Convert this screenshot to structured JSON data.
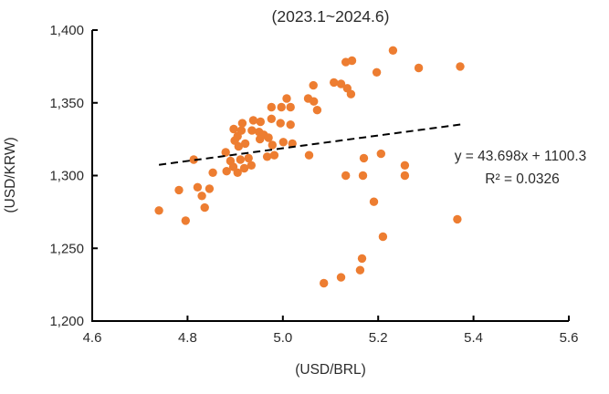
{
  "chart_data": {
    "type": "scatter",
    "title": "(2023.1~2024.6)",
    "xlabel": "(USD/BRL)",
    "ylabel": "(USD/KRW)",
    "xlim": [
      4.6,
      5.6
    ],
    "ylim": [
      1200,
      1400
    ],
    "grid": false,
    "legend_position": "none",
    "marker_color": "#ED7D31",
    "axis_color": "#000000",
    "x_ticks": [
      {
        "value": 4.6,
        "label": "4.6"
      },
      {
        "value": 4.8,
        "label": "4.8"
      },
      {
        "value": 5.0,
        "label": "5.0"
      },
      {
        "value": 5.2,
        "label": "5.2"
      },
      {
        "value": 5.4,
        "label": "5.4"
      },
      {
        "value": 5.6,
        "label": "5.6"
      }
    ],
    "y_ticks": [
      {
        "value": 1200,
        "label": "1,200"
      },
      {
        "value": 1250,
        "label": "1,250"
      },
      {
        "value": 1300,
        "label": "1,300"
      },
      {
        "value": 1350,
        "label": "1,350"
      },
      {
        "value": 1400,
        "label": "1,400"
      }
    ],
    "trendline": {
      "slope": 43.698,
      "intercept": 1100.3,
      "r_squared": 0.0326,
      "x_start": 4.74,
      "x_end": 5.38,
      "style": "dashed",
      "color": "#000000",
      "equation_label": "y = 43.698x + 1100.3",
      "r_squared_label": "R² = 0.0326"
    },
    "points": [
      [
        4.74,
        1276
      ],
      [
        4.782,
        1290
      ],
      [
        4.796,
        1269
      ],
      [
        4.821,
        1292
      ],
      [
        4.83,
        1286
      ],
      [
        4.836,
        1278
      ],
      [
        4.846,
        1291
      ],
      [
        4.813,
        1311
      ],
      [
        4.853,
        1302
      ],
      [
        4.88,
        1316
      ],
      [
        4.882,
        1303
      ],
      [
        4.89,
        1310
      ],
      [
        4.896,
        1306
      ],
      [
        4.897,
        1332
      ],
      [
        4.899,
        1324
      ],
      [
        4.905,
        1327
      ],
      [
        4.905,
        1302
      ],
      [
        4.907,
        1320
      ],
      [
        4.911,
        1311
      ],
      [
        4.913,
        1331
      ],
      [
        4.919,
        1305
      ],
      [
        4.921,
        1322
      ],
      [
        4.928,
        1312
      ],
      [
        4.934,
        1307
      ],
      [
        4.935,
        1331
      ],
      [
        4.95,
        1330
      ],
      [
        4.96,
        1328
      ],
      [
        4.97,
        1326
      ],
      [
        4.952,
        1325
      ],
      [
        4.915,
        1336
      ],
      [
        4.938,
        1338
      ],
      [
        4.953,
        1337
      ],
      [
        4.976,
        1339
      ],
      [
        4.976,
        1347
      ],
      [
        4.997,
        1347
      ],
      [
        5.016,
        1347
      ],
      [
        4.995,
        1336
      ],
      [
        5.016,
        1335
      ],
      [
        4.978,
        1321
      ],
      [
        5.001,
        1323
      ],
      [
        5.02,
        1322
      ],
      [
        4.967,
        1313
      ],
      [
        4.982,
        1314
      ],
      [
        5.008,
        1353
      ],
      [
        5.053,
        1353
      ],
      [
        5.065,
        1351
      ],
      [
        5.072,
        1345
      ],
      [
        5.055,
        1314
      ],
      [
        5.064,
        1362
      ],
      [
        5.107,
        1364
      ],
      [
        5.122,
        1363
      ],
      [
        5.135,
        1360
      ],
      [
        5.143,
        1356
      ],
      [
        5.132,
        1378
      ],
      [
        5.145,
        1379
      ],
      [
        5.197,
        1371
      ],
      [
        5.231,
        1386
      ],
      [
        5.285,
        1374
      ],
      [
        5.372,
        1375
      ],
      [
        5.132,
        1300
      ],
      [
        5.168,
        1300
      ],
      [
        5.17,
        1312
      ],
      [
        5.206,
        1315
      ],
      [
        5.256,
        1307
      ],
      [
        5.256,
        1300
      ],
      [
        5.191,
        1282
      ],
      [
        5.366,
        1270
      ],
      [
        5.21,
        1258
      ],
      [
        5.166,
        1243
      ],
      [
        5.162,
        1235
      ],
      [
        5.122,
        1230
      ],
      [
        5.086,
        1226
      ]
    ]
  }
}
